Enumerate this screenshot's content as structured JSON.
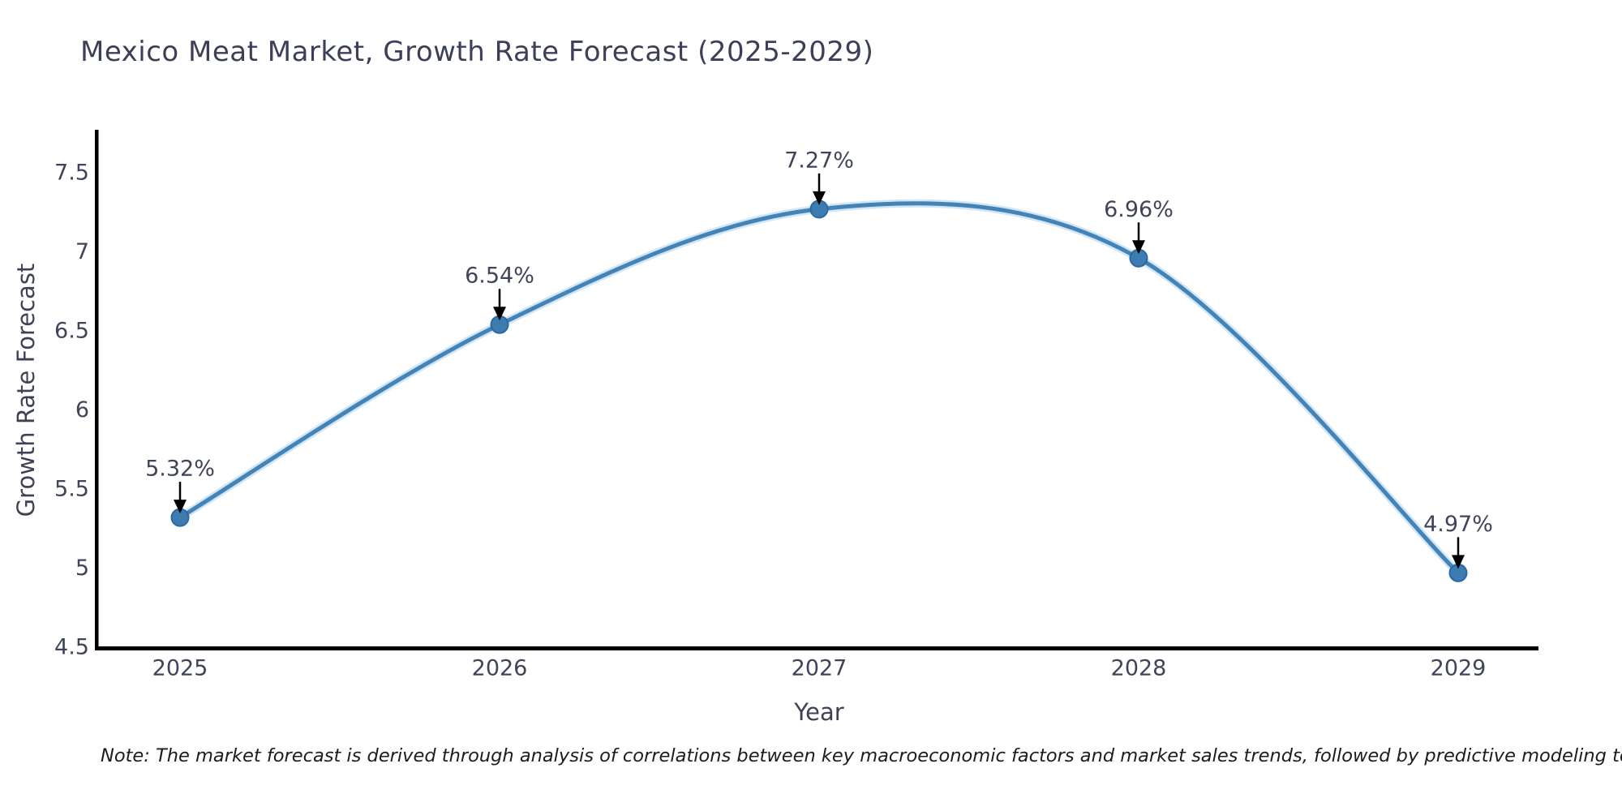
{
  "title": "Mexico Meat Market, Growth Rate Forecast (2025-2029)",
  "note": "Note: The market forecast is derived through analysis of correlations between key macroeconomic factors and market sales trends, followed by predictive modeling to project future sales",
  "chart_data": {
    "type": "line",
    "title": "Mexico Meat Market, Growth Rate Forecast (2025-2029)",
    "categories": [
      "2025",
      "2026",
      "2027",
      "2028",
      "2029"
    ],
    "values": [
      5.32,
      6.54,
      7.27,
      6.96,
      4.97
    ],
    "point_labels": [
      "5.32%",
      "6.54%",
      "7.27%",
      "6.96%",
      "4.97%"
    ],
    "xlabel": "Year",
    "ylabel": "Growth Rate Forecast",
    "ylim": [
      4.5,
      7.5
    ],
    "yticks": [
      4.5,
      5,
      5.5,
      6,
      6.5,
      7,
      7.5
    ],
    "ytick_labels": [
      "4.5",
      "5",
      "5.5",
      "6",
      "6.5",
      "7",
      "7.5"
    ],
    "grid": false,
    "legend": false,
    "line_color": "#4383b6",
    "line_halo_color": "rgba(120,180,225,0.35)",
    "marker_color": "#3d7cb1",
    "marker_edge_color": "#2a69a1",
    "arrow_color": "#000000",
    "axis_spine_color": "#000000",
    "tick_label_color": "#3f4559",
    "annotation_label_color": "#3f4559",
    "axis_title_color": "#3d4257"
  },
  "colors": {
    "title": "#3b4058",
    "note": "#1c1c1c",
    "background": "#ffffff"
  }
}
